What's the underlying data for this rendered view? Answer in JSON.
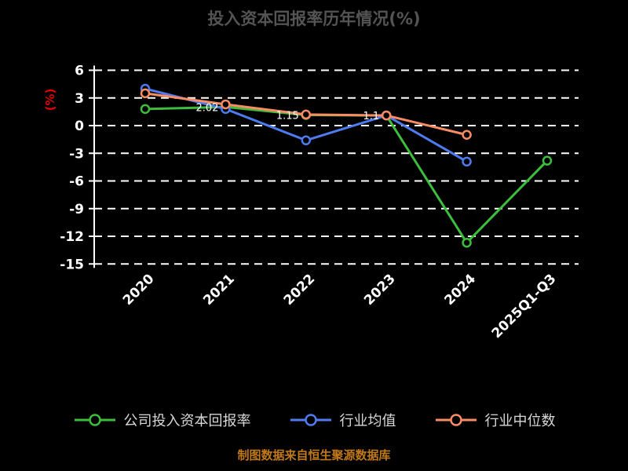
{
  "chart_data": {
    "type": "line",
    "title": "投入资本回报率历年情况(%)",
    "ylabel": "(%)",
    "categories": [
      "2020",
      "2021",
      "2022",
      "2023",
      "2024",
      "2025Q1-Q3"
    ],
    "yticks": [
      6,
      3,
      0,
      -3,
      -6,
      -9,
      -12,
      -15
    ],
    "ylim": [
      -15,
      6
    ],
    "grid": "horizontal-dashed",
    "legend_position": "bottom",
    "series": [
      {
        "name": "公司投入资本回报率",
        "color": "#3cbe3c",
        "values": [
          1.8,
          2.02,
          1.15,
          1.1,
          -12.7,
          -3.8
        ],
        "point_labels": {
          "1": "2.02",
          "2": "1.15",
          "3": "1.1"
        }
      },
      {
        "name": "行业均值",
        "color": "#4e7cf0",
        "values": [
          4.0,
          1.8,
          -1.6,
          1.1,
          -3.9,
          null
        ]
      },
      {
        "name": "行业中位数",
        "color": "#fa8c64",
        "values": [
          3.5,
          2.3,
          1.2,
          1.1,
          -1.0,
          null
        ]
      }
    ],
    "source_note": "制图数据来自恒生聚源数据库"
  },
  "colors": {
    "background": "#000000",
    "grid": "#ffffff",
    "axis": "#ffffff",
    "tick_label": "#ffffff",
    "title": "#545454",
    "ylabel": "#e60000",
    "legend_text": "#d8d8d8",
    "source_note": "#c17817"
  }
}
